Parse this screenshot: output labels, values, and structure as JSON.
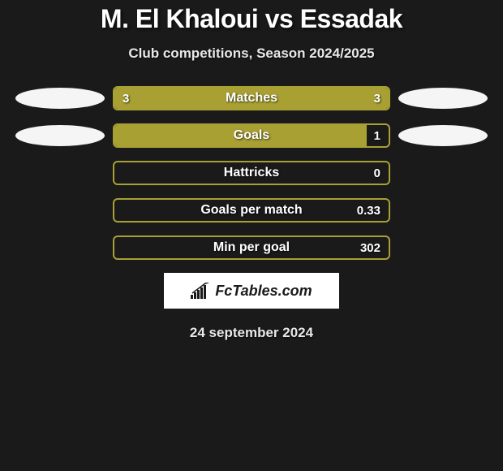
{
  "title": "M. El Khaloui vs Essadak",
  "subtitle": "Club competitions, Season 2024/2025",
  "date": "24 september 2024",
  "logo_text": "FcTables.com",
  "colors": {
    "background": "#1a1a1a",
    "bar_fill": "#a8a033",
    "bar_border": "#a8a033",
    "ellipse": "#f5f5f5",
    "text": "#ffffff",
    "logo_bg": "#ffffff",
    "logo_text": "#1a1a1a"
  },
  "stats": [
    {
      "label": "Matches",
      "left_value": "3",
      "right_value": "3",
      "left_fill_pct": 100,
      "right_fill_pct": 0,
      "show_left_ellipse": true,
      "show_right_ellipse": true
    },
    {
      "label": "Goals",
      "left_value": "",
      "right_value": "1",
      "left_fill_pct": 92,
      "right_fill_pct": 0,
      "show_left_ellipse": true,
      "show_right_ellipse": true
    },
    {
      "label": "Hattricks",
      "left_value": "",
      "right_value": "0",
      "left_fill_pct": 0,
      "right_fill_pct": 0,
      "show_left_ellipse": false,
      "show_right_ellipse": false
    },
    {
      "label": "Goals per match",
      "left_value": "",
      "right_value": "0.33",
      "left_fill_pct": 0,
      "right_fill_pct": 0,
      "show_left_ellipse": false,
      "show_right_ellipse": false
    },
    {
      "label": "Min per goal",
      "left_value": "",
      "right_value": "302",
      "left_fill_pct": 0,
      "right_fill_pct": 0,
      "show_left_ellipse": false,
      "show_right_ellipse": false
    }
  ]
}
